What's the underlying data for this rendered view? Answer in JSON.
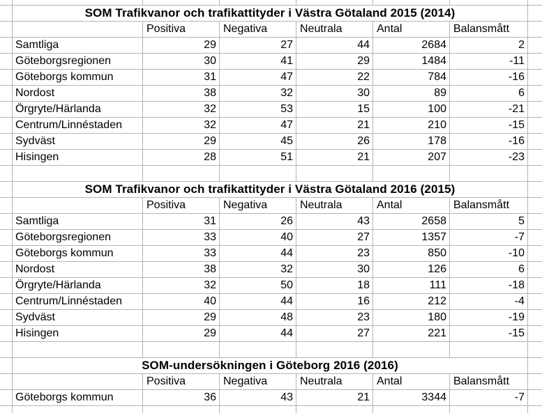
{
  "sheet": {
    "columns": [
      "Positiva",
      "Negativa",
      "Neutrala",
      "Antal",
      "Balansmått"
    ],
    "tables": [
      {
        "title": "SOM Trafikvanor och trafikattityder i Västra Götaland 2015 (2014)",
        "rows": [
          {
            "label": "Samtliga",
            "values": [
              29,
              27,
              44,
              2684,
              2
            ]
          },
          {
            "label": "Göteborgsregionen",
            "values": [
              30,
              41,
              29,
              1484,
              -11
            ]
          },
          {
            "label": "Göteborgs kommun",
            "values": [
              31,
              47,
              22,
              784,
              -16
            ]
          },
          {
            "label": "Nordost",
            "values": [
              38,
              32,
              30,
              89,
              6
            ]
          },
          {
            "label": "Örgryte/Härlanda",
            "values": [
              32,
              53,
              15,
              100,
              -21
            ]
          },
          {
            "label": "Centrum/Linnéstaden",
            "values": [
              32,
              47,
              21,
              210,
              -15
            ]
          },
          {
            "label": "Sydväst",
            "values": [
              29,
              45,
              26,
              178,
              -16
            ]
          },
          {
            "label": "Hisingen",
            "values": [
              28,
              51,
              21,
              207,
              -23
            ]
          }
        ]
      },
      {
        "title": "SOM Trafikvanor och trafikattityder i Västra Götaland 2016 (2015)",
        "rows": [
          {
            "label": "Samtliga",
            "values": [
              31,
              26,
              43,
              2658,
              5
            ]
          },
          {
            "label": "Göteborgsregionen",
            "values": [
              33,
              40,
              27,
              1357,
              -7
            ]
          },
          {
            "label": "Göteborgs kommun",
            "values": [
              33,
              44,
              23,
              850,
              -10
            ]
          },
          {
            "label": "Nordost",
            "values": [
              38,
              32,
              30,
              126,
              6
            ]
          },
          {
            "label": "Örgryte/Härlanda",
            "values": [
              32,
              50,
              18,
              111,
              -18
            ]
          },
          {
            "label": "Centrum/Linnéstaden",
            "values": [
              40,
              44,
              16,
              212,
              -4
            ]
          },
          {
            "label": "Sydväst",
            "values": [
              29,
              48,
              23,
              180,
              -19
            ]
          },
          {
            "label": "Hisingen",
            "values": [
              29,
              44,
              27,
              221,
              -15
            ]
          }
        ]
      },
      {
        "title": "SOM-undersökningen i Göteborg 2016 (2016)",
        "rows": [
          {
            "label": "Göteborgs kommun",
            "values": [
              36,
              43,
              21,
              3344,
              -7
            ]
          }
        ]
      }
    ],
    "colors": {
      "gridline": "#b4b4b4",
      "text": "#000000",
      "background": "#ffffff"
    }
  }
}
